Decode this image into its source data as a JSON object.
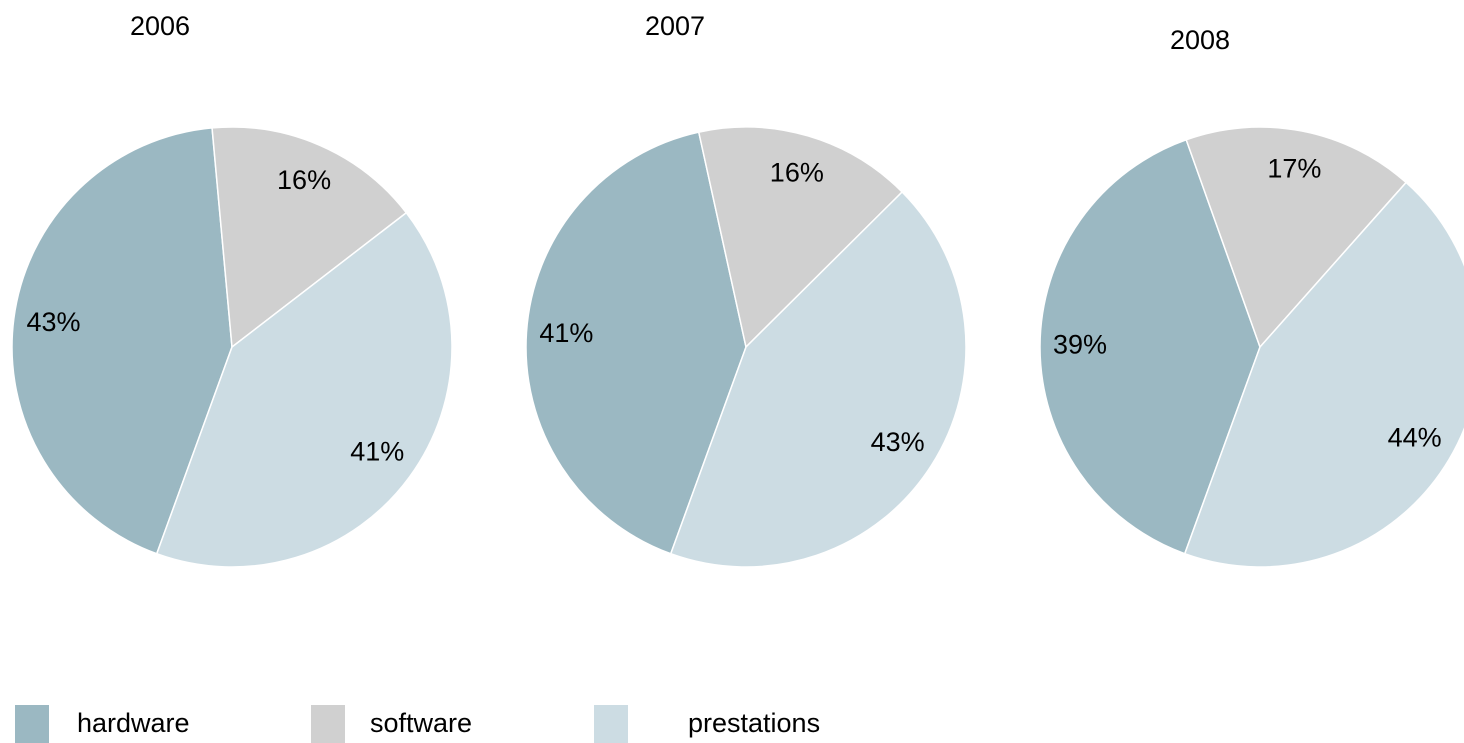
{
  "chart_data": [
    {
      "type": "pie",
      "title": "2006",
      "values": [
        43,
        16,
        41
      ],
      "value_labels": [
        "43%",
        "16%",
        "41%"
      ]
    },
    {
      "type": "pie",
      "title": "2007",
      "values": [
        41,
        16,
        43
      ],
      "value_labels": [
        "41%",
        "16%",
        "43%"
      ]
    },
    {
      "type": "pie",
      "title": "2008",
      "values": [
        39,
        17,
        44
      ],
      "value_labels": [
        "39%",
        "17%",
        "44%"
      ]
    }
  ],
  "legend": {
    "names": [
      "hardware",
      "software",
      "prestations"
    ],
    "colors": [
      "#9bb8c2",
      "#d0d0d0",
      "#ccdce3"
    ]
  }
}
